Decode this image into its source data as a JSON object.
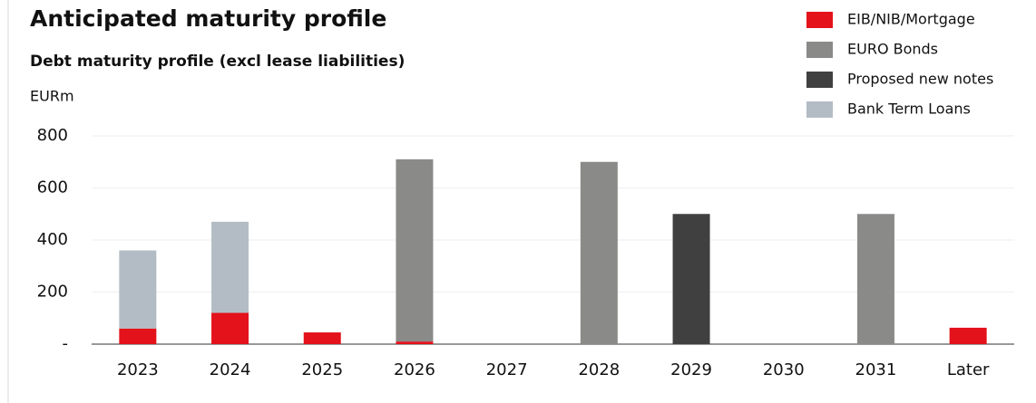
{
  "chart_data": {
    "type": "stacked_bar",
    "title": "Anticipated maturity profile",
    "subtitle": "Debt maturity profile (excl lease liabilities)",
    "y_axis_label": "EURm",
    "categories": [
      "2023",
      "2024",
      "2025",
      "2026",
      "2027",
      "2028",
      "2029",
      "2030",
      "2031",
      "Later"
    ],
    "series": [
      {
        "name": "EIB/NIB/Mortgage",
        "color": "#e3121b",
        "values": [
          60,
          120,
          45,
          10,
          0,
          0,
          0,
          0,
          0,
          63
        ]
      },
      {
        "name": "EURO Bonds",
        "color": "#8a8a88",
        "values": [
          0,
          0,
          0,
          700,
          0,
          700,
          0,
          0,
          500,
          0
        ]
      },
      {
        "name": "Proposed new notes",
        "color": "#404040",
        "values": [
          0,
          0,
          0,
          0,
          0,
          0,
          500,
          0,
          0,
          0
        ]
      },
      {
        "name": "Bank Term Loans",
        "color": "#b3bcc4",
        "values": [
          300,
          350,
          0,
          0,
          0,
          0,
          0,
          0,
          0,
          0
        ]
      }
    ],
    "ylim": [
      0,
      800
    ],
    "yticks": [
      {
        "value": 0,
        "label": "-"
      },
      200,
      400,
      600,
      800
    ],
    "grid": true,
    "legend": "top-right"
  }
}
